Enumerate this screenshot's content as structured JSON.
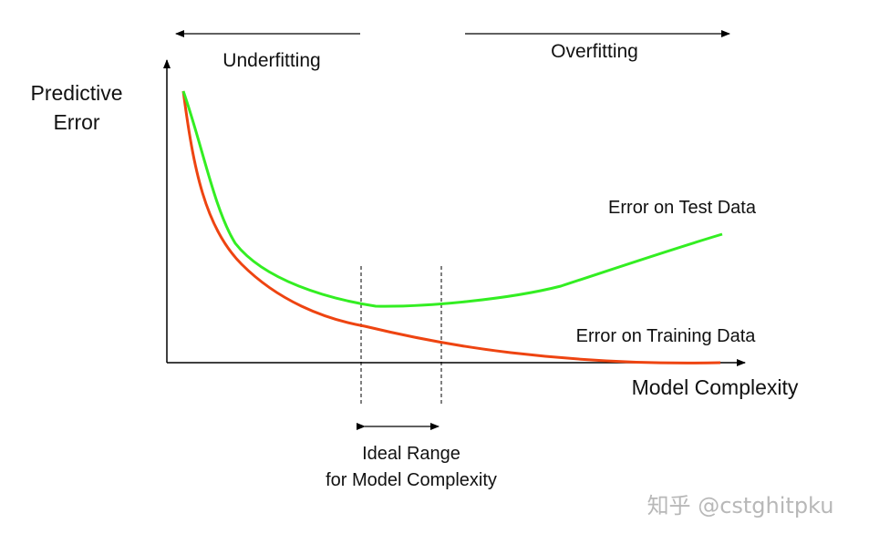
{
  "labels": {
    "y_axis_line1": "Predictive",
    "y_axis_line2": "Error",
    "x_axis": "Model Complexity",
    "underfitting": "Underfitting",
    "overfitting": "Overfitting",
    "test_curve": "Error on Test Data",
    "training_curve": "Error on Training Data",
    "ideal_line1": "Ideal Range",
    "ideal_line2": "for Model Complexity"
  },
  "watermark": "知乎 @cstghitpku",
  "colors": {
    "test_curve": "#33ee22",
    "training_curve": "#ee4411",
    "axes": "#000000",
    "text": "#111111",
    "watermark": "#b8b8b8"
  }
}
